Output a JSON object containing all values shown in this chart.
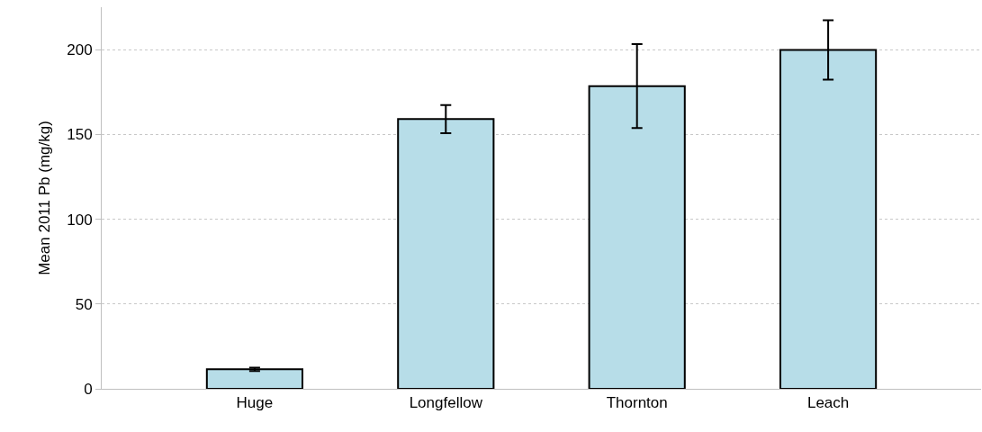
{
  "chart_data": {
    "type": "bar",
    "ylabel": "Mean 2011 Pb (mg/kg)",
    "categories": [
      "Huge",
      "Longfellow",
      "Thornton",
      "Leach"
    ],
    "values": [
      11.5,
      159,
      178.5,
      199.8
    ],
    "errors": [
      1,
      8.3,
      24.7,
      17.5
    ],
    "color": "#b7dde8",
    "ylim": [
      0,
      225
    ],
    "yticks": [
      0,
      50,
      100,
      150,
      200
    ],
    "grid": "y"
  }
}
